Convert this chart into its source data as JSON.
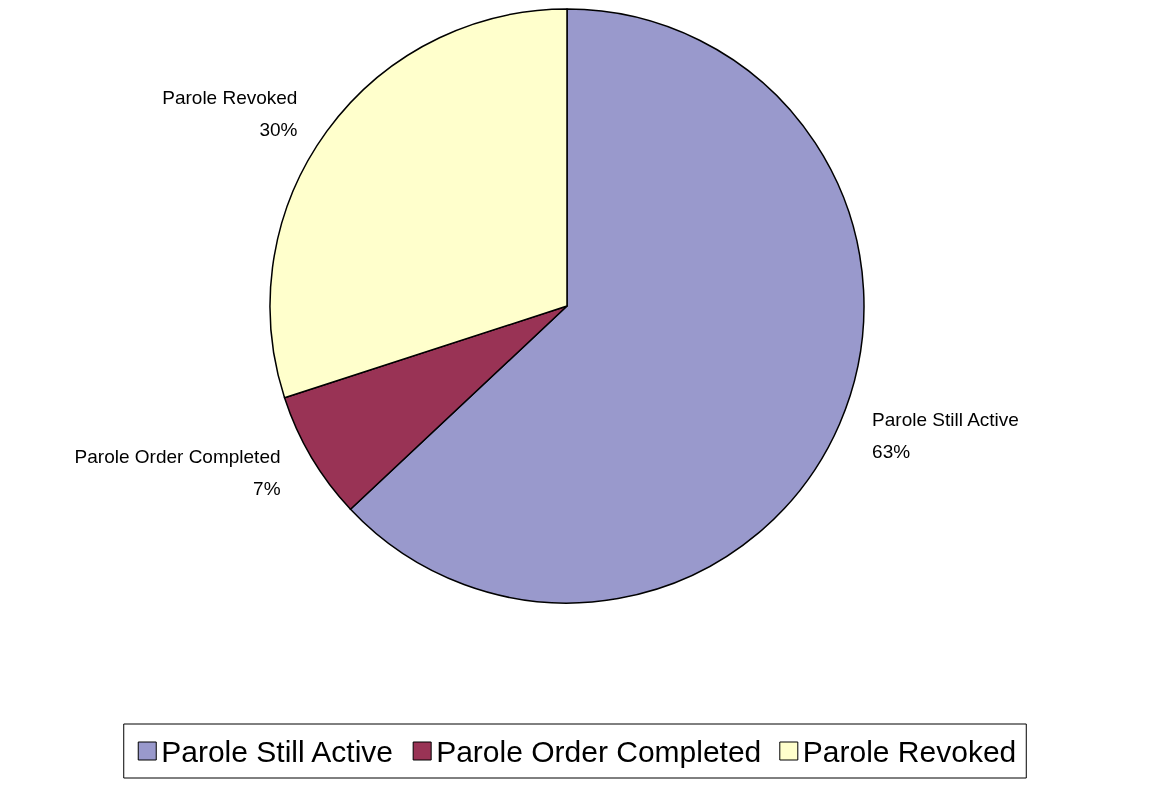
{
  "chart_data": {
    "type": "pie",
    "categories": [
      "Parole Still Active",
      "Parole Order Completed",
      "Parole Revoked"
    ],
    "values": [
      63,
      7,
      30
    ],
    "value_labels": [
      "63%",
      "7%",
      "30%"
    ],
    "colors": [
      "#9999cc",
      "#993355",
      "#ffffcc"
    ],
    "legend": "bottom"
  }
}
